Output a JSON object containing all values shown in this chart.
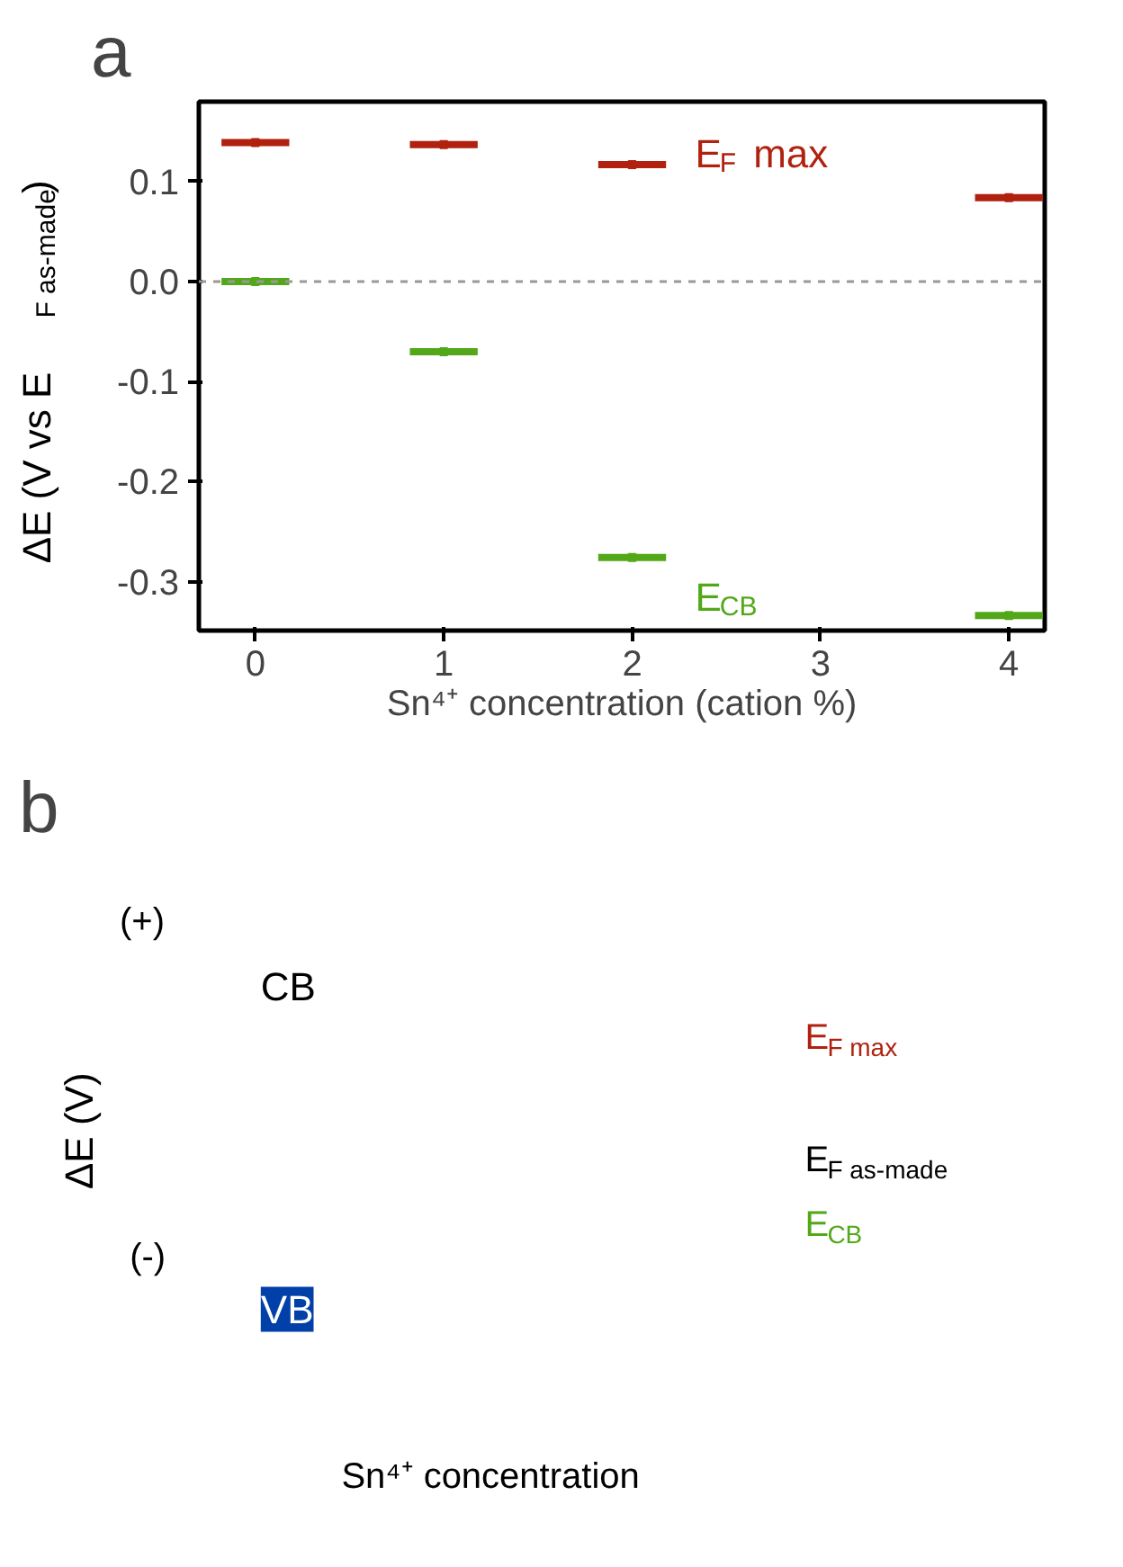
{
  "chart_data": [
    {
      "type": "scatter",
      "title": "a",
      "xlabel": "Sn⁴⁺ concentration (cation %)",
      "ylabel": "ΔE (V vs E$_{F as-made}$)",
      "x": [
        0,
        1,
        2,
        4
      ],
      "series": [
        {
          "name": "E$_{F}$ max",
          "color": "#b0220f",
          "values": [
            0.139,
            0.137,
            0.117,
            0.084
          ],
          "xerrors": [
            0.18,
            0.18,
            0.18,
            0.18
          ]
        },
        {
          "name": "E$_{CB}$",
          "color": "#52a818",
          "values": [
            0.0,
            -0.07,
            -0.276,
            -0.334
          ],
          "xerrors": [
            0.18,
            0.18,
            0.18,
            0.18
          ]
        }
      ],
      "xlim": [
        -0.3,
        4.19
      ],
      "ylim": [
        -0.349,
        0.18
      ],
      "xticks": [
        0,
        1,
        2,
        3,
        4
      ],
      "yticks": [
        {
          "value": -0.3,
          "label": "-0.3"
        },
        {
          "value": -0.2,
          "label": "-0.2"
        },
        {
          "value": -0.1,
          "label": "-0.1"
        },
        {
          "value": 0,
          "label": "0.0"
        },
        {
          "value": 0.1,
          "label": "0.1"
        }
      ],
      "ref_lines": [
        {
          "axis": "y",
          "value": 0,
          "color": "#999999",
          "line_style": "dashed"
        }
      ],
      "marker": "square",
      "grid": false
    },
    {
      "type": "other",
      "title": "b",
      "annotations": [
        "(+)",
        "CB",
        "ΔE (V)",
        "(-)",
        "VB",
        "E$_{F max}$",
        "E$_{F as-made}$",
        "E$_{CB}$",
        "Sn⁴⁺ concentration"
      ]
    }
  ]
}
